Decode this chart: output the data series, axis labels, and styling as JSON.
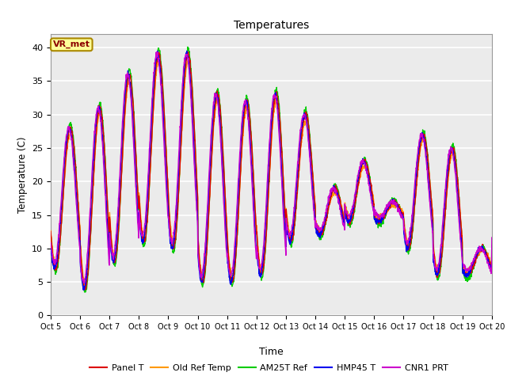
{
  "title": "Temperatures",
  "xlabel": "Time",
  "ylabel": "Temperature (C)",
  "ylim": [
    0,
    42
  ],
  "background_color": "#ebebeb",
  "series_colors": {
    "Panel T": "#dd0000",
    "Old Ref Temp": "#ff9900",
    "AM25T Ref": "#00cc00",
    "HMP45 T": "#0000ee",
    "CNR1 PRT": "#cc00cc"
  },
  "annotation_text": "VR_met",
  "annotation_color": "#8b0000",
  "annotation_bg": "#ffff99",
  "xtick_labels": [
    "Oct 5",
    "Oct 6",
    "Oct 7",
    "Oct 8",
    "Oct 9",
    "Oct 10",
    "Oct 11",
    "Oct 12",
    "Oct 13",
    "Oct 14",
    "Oct 15",
    "Oct 16",
    "Oct 17",
    "Oct 18",
    "Oct 19",
    "Oct 20"
  ],
  "ytick_vals": [
    0,
    5,
    10,
    15,
    20,
    25,
    30,
    35,
    40
  ],
  "day_peaks": [
    28,
    31,
    36,
    39,
    39,
    33,
    32,
    33,
    30,
    19,
    23,
    17,
    27,
    25,
    10,
    10
  ],
  "day_mins": [
    7,
    4,
    8,
    11,
    10,
    5,
    5,
    6,
    11,
    12,
    14,
    14,
    10,
    6,
    6,
    10
  ]
}
